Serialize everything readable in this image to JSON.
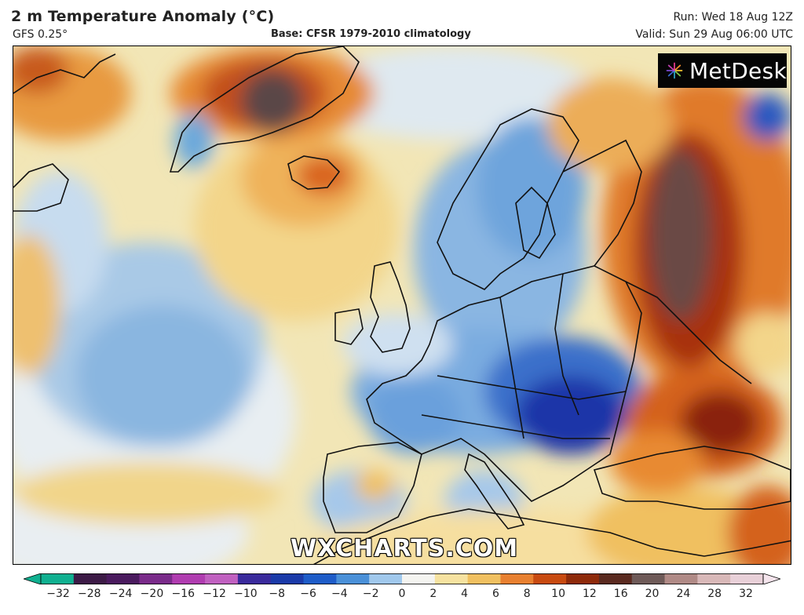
{
  "header": {
    "title": "2 m Temperature Anomaly (°C)",
    "model": "GFS 0.25°",
    "base": "Base: CFSR 1979-2010 climatology",
    "run": "Run: Wed 18 Aug 12Z",
    "valid": "Valid: Sun 29 Aug 06:00 UTC"
  },
  "logo": {
    "text": "MetDesk",
    "icon": "metdesk-burst-icon"
  },
  "watermark": "WXCHARTS.COM",
  "colorbar": {
    "ticks": [
      "−32",
      "−28",
      "−24",
      "−20",
      "−16",
      "−12",
      "−10",
      "−8",
      "−6",
      "−4",
      "−2",
      "0",
      "2",
      "4",
      "6",
      "8",
      "10",
      "12",
      "16",
      "20",
      "24",
      "28",
      "32"
    ],
    "colors": [
      "#10b090",
      "#3c1a46",
      "#4a1a5e",
      "#7a2b8a",
      "#b03cb0",
      "#c060c0",
      "#3a2a9c",
      "#1a3aa8",
      "#1e5cc8",
      "#4a90d8",
      "#a0c8ec",
      "#f4f4f0",
      "#f6e2a0",
      "#f0c060",
      "#e88030",
      "#c84a10",
      "#8e2a0a",
      "#5a2a20",
      "#6e5a58",
      "#b08a86",
      "#d8b8b8",
      "#e8d0d8",
      "#f4e4ec"
    ]
  },
  "palette": {
    "ocean_neutral": "#f4efd0",
    "cold_light": "#cfe2f2",
    "cold_mid": "#7fb0e0",
    "cold_strong": "#2a63c0",
    "cold_extreme": "#14229a",
    "warm_light": "#f3d98a",
    "warm_mid": "#eba144",
    "warm_strong": "#d4621c",
    "warm_extreme": "#8a2410",
    "heat_core": "#5e4a48"
  }
}
